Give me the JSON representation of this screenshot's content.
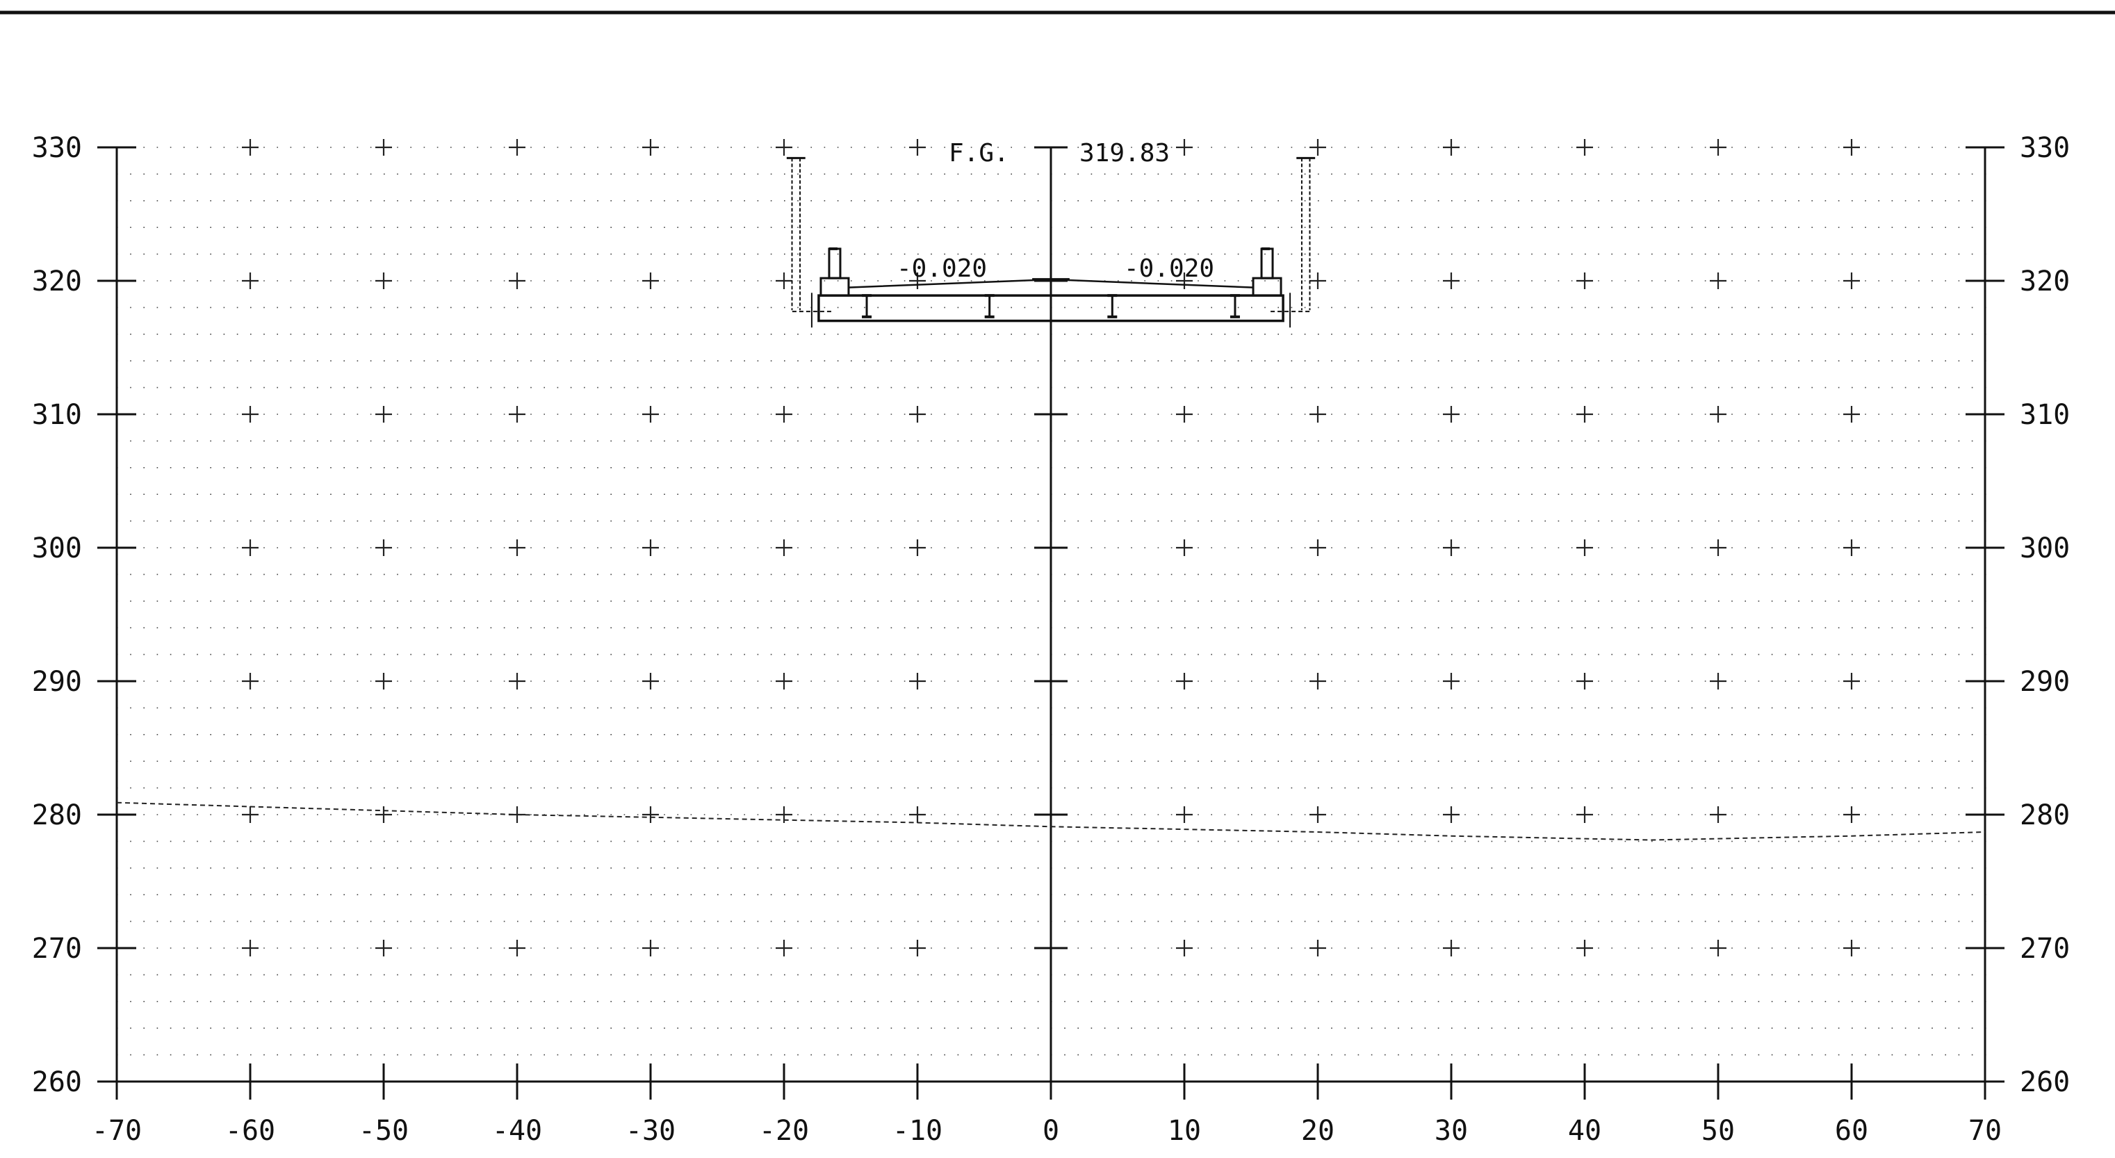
{
  "drawing": {
    "fg_label": "F.G.",
    "fg_value": "319.83",
    "slope_left": "-0.020",
    "slope_right": "-0.020"
  },
  "chart_data": {
    "type": "line",
    "title": "",
    "xlabel": "",
    "ylabel": "",
    "xlim": [
      -70,
      70
    ],
    "ylim": [
      260,
      330
    ],
    "x_ticks": [
      -70,
      -60,
      -50,
      -40,
      -30,
      -20,
      -10,
      0,
      10,
      20,
      30,
      40,
      50,
      60,
      70
    ],
    "x_tick_labels": [
      "-70",
      "-60",
      "-50",
      "-40",
      "-30",
      "-20",
      "-10",
      "0",
      "10",
      "20",
      "30",
      "40",
      "50",
      "60",
      "70"
    ],
    "y_ticks": [
      260,
      270,
      280,
      290,
      300,
      310,
      320,
      330
    ],
    "y_tick_labels": [
      "260",
      "270",
      "280",
      "290",
      "300",
      "310",
      "320",
      "330"
    ],
    "grid": true,
    "series": [
      {
        "style": "dashed",
        "x": [
          -70,
          -60,
          -50,
          -40,
          -30,
          -20,
          -10,
          0,
          10,
          20,
          30,
          40,
          45,
          50,
          60,
          70
        ],
        "y": [
          280.9,
          280.6,
          280.3,
          280.0,
          279.8,
          279.6,
          279.4,
          279.1,
          278.9,
          278.7,
          278.4,
          278.2,
          278.1,
          278.2,
          278.4,
          278.7
        ]
      }
    ],
    "annotations": [
      {
        "text": "F.G. 319.83",
        "x": 0,
        "y": 319.83
      },
      {
        "text": "-0.020",
        "x": -8,
        "y": 320.6
      },
      {
        "text": "-0.020",
        "x": 8,
        "y": 320.6
      }
    ]
  }
}
